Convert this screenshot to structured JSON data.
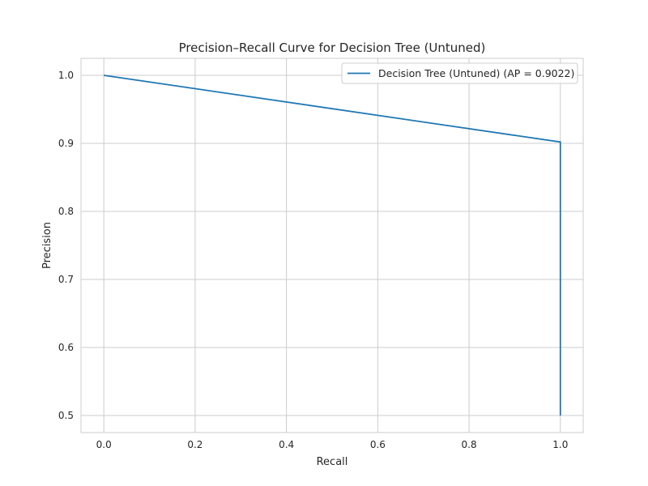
{
  "chart_data": {
    "type": "line",
    "title": "Precision–Recall Curve for Decision Tree (Untuned)",
    "xlabel": "Recall",
    "ylabel": "Precision",
    "xlim": [
      -0.05,
      1.05
    ],
    "ylim": [
      0.475,
      1.025
    ],
    "xticks": [
      0.0,
      0.2,
      0.4,
      0.6,
      0.8,
      1.0
    ],
    "xtick_labels": [
      "0.0",
      "0.2",
      "0.4",
      "0.6",
      "0.8",
      "1.0"
    ],
    "yticks": [
      0.5,
      0.6,
      0.7,
      0.8,
      0.9,
      1.0
    ],
    "ytick_labels": [
      "0.5",
      "0.6",
      "0.7",
      "0.8",
      "0.9",
      "1.0"
    ],
    "grid": true,
    "legend_position": "top-right",
    "series": [
      {
        "name": "Decision Tree (Untuned) (AP = 0.9022)",
        "color": "#1f77b4",
        "x": [
          0.0,
          1.0,
          1.0
        ],
        "y": [
          1.0,
          0.902,
          0.5
        ]
      }
    ]
  }
}
